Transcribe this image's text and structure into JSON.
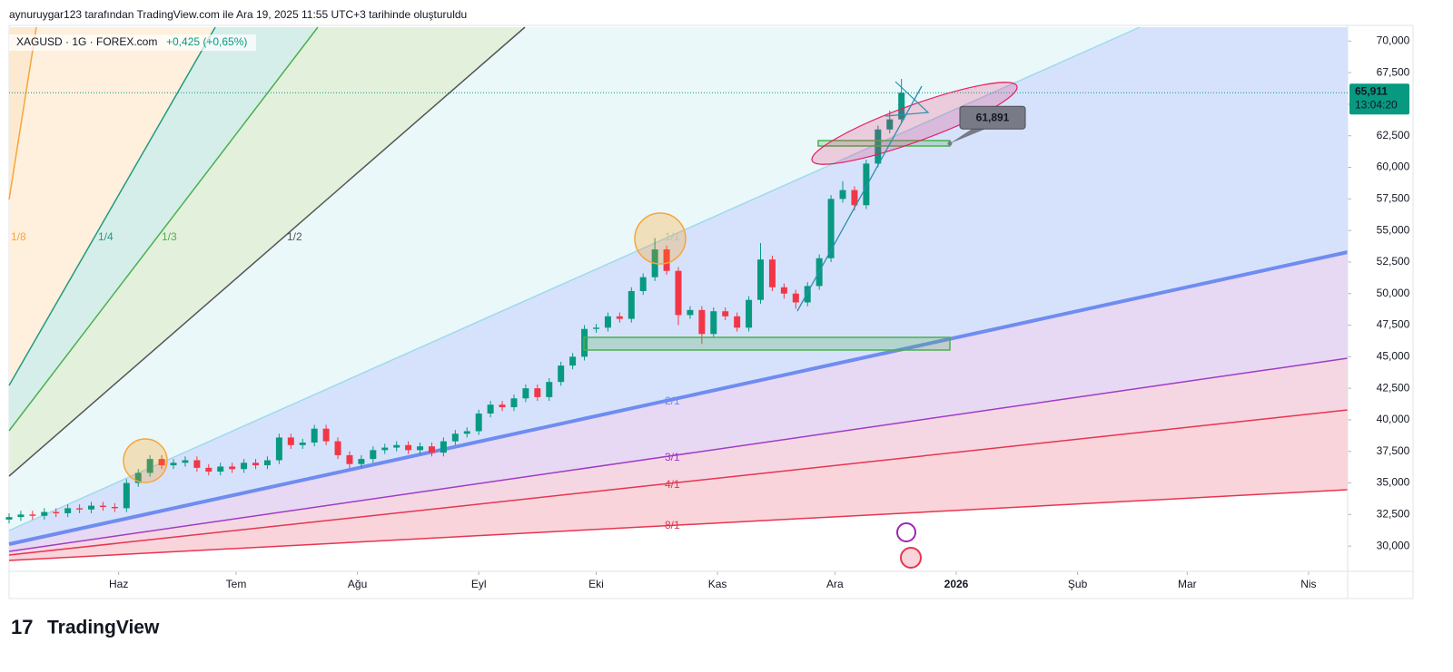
{
  "header": {
    "caption": "aynuruygar123 tarafından TradingView.com ile Ara 19, 2025 11:55 UTC+3 tarihinde oluşturuldu"
  },
  "chart_data": {
    "type": "candlestick",
    "symbol": "XAGUSD · 1G · FOREX.com",
    "change": "+0,425 (+0,65%)",
    "up_color": "#089981",
    "down_color": "#f23645",
    "x": [
      0,
      3,
      6,
      9,
      12,
      15,
      18,
      21,
      24,
      27,
      30,
      33,
      36,
      39,
      42,
      45,
      48,
      51,
      54,
      57,
      60,
      63,
      66,
      69,
      72,
      75,
      78,
      81,
      84,
      87,
      90,
      93,
      96,
      99,
      102,
      105,
      108,
      111,
      114,
      117,
      120,
      123,
      126,
      129,
      132,
      135,
      138,
      141,
      144,
      147,
      150,
      153,
      156,
      159,
      162,
      165,
      168,
      171,
      174,
      177,
      180,
      183,
      186,
      189,
      192,
      195,
      198,
      201,
      204,
      207,
      210,
      213,
      216,
      219,
      222,
      225,
      228
    ],
    "open": [
      32100,
      32300,
      32500,
      32400,
      32700,
      32600,
      33000,
      32900,
      33200,
      33100,
      33000,
      35000,
      35800,
      36900,
      36400,
      36600,
      36800,
      36200,
      35900,
      36300,
      36100,
      36600,
      36400,
      36800,
      38600,
      38000,
      38200,
      39300,
      38300,
      37200,
      36500,
      36900,
      37600,
      37800,
      38000,
      37600,
      37900,
      37400,
      38300,
      38900,
      39100,
      40500,
      41200,
      41000,
      41700,
      42500,
      41800,
      43000,
      44300,
      45000,
      47200,
      47300,
      48200,
      48000,
      50200,
      51300,
      53500,
      51800,
      48300,
      48700,
      46800,
      48600,
      48200,
      47300,
      49500,
      52700,
      50500,
      50000,
      49300,
      50600,
      52800,
      57500,
      58200,
      57000,
      60300,
      63000,
      63800
    ],
    "high": [
      32600,
      32800,
      32800,
      33000,
      33000,
      33300,
      33300,
      33500,
      33500,
      33400,
      35300,
      36100,
      37200,
      37200,
      36900,
      37100,
      37100,
      36500,
      36600,
      36600,
      36900,
      36900,
      37100,
      38900,
      38900,
      38500,
      39600,
      39600,
      38600,
      37500,
      37200,
      37900,
      38100,
      38300,
      38300,
      38200,
      38200,
      38600,
      39200,
      39400,
      40800,
      41500,
      41500,
      42000,
      42800,
      42800,
      43300,
      44600,
      45300,
      47500,
      47600,
      48500,
      48500,
      50500,
      51600,
      54400,
      53800,
      52100,
      49000,
      49000,
      48900,
      48900,
      48500,
      49800,
      54000,
      53000,
      50800,
      50300,
      50900,
      53100,
      57800,
      58900,
      58500,
      60600,
      63300,
      64500,
      67000
    ],
    "low": [
      31800,
      32000,
      32100,
      32100,
      32300,
      32300,
      32600,
      32600,
      32800,
      32700,
      32700,
      34700,
      35500,
      36100,
      36100,
      36300,
      35900,
      35600,
      35600,
      35800,
      35800,
      36100,
      36100,
      36500,
      37700,
      37700,
      37900,
      38000,
      36900,
      36200,
      36200,
      36600,
      37300,
      37500,
      37300,
      37300,
      37100,
      37100,
      38000,
      38600,
      38800,
      40200,
      40700,
      40700,
      41400,
      41500,
      41500,
      42700,
      44000,
      44700,
      46900,
      47000,
      47700,
      47700,
      49900,
      51000,
      51500,
      47500,
      48000,
      46000,
      46500,
      47900,
      47000,
      47000,
      49200,
      50200,
      49600,
      48800,
      49000,
      50300,
      52500,
      57200,
      56600,
      56700,
      60000,
      62700,
      63500
    ],
    "close": [
      32300,
      32500,
      32400,
      32700,
      32600,
      33000,
      32900,
      33200,
      33100,
      33000,
      35000,
      35800,
      36900,
      36400,
      36600,
      36800,
      36200,
      35900,
      36300,
      36100,
      36600,
      36400,
      36800,
      38600,
      38000,
      38200,
      39300,
      38300,
      37200,
      36500,
      36900,
      37600,
      37800,
      38000,
      37600,
      37900,
      37400,
      38300,
      38900,
      39100,
      40500,
      41200,
      41000,
      41700,
      42500,
      41800,
      43000,
      44300,
      45000,
      47200,
      47300,
      48200,
      48000,
      50200,
      51300,
      53500,
      51800,
      48300,
      48700,
      46800,
      48600,
      48200,
      47300,
      49500,
      52700,
      50500,
      50000,
      49300,
      50600,
      52800,
      57500,
      58200,
      57000,
      60300,
      63000,
      63800,
      65911
    ],
    "last_price_label": "65,911",
    "countdown": "13:04:20",
    "annotation": {
      "value": 61891,
      "label": "61,891"
    },
    "fan_labels": [
      "1/8",
      "1/4",
      "1/3",
      "1/2",
      "1/1",
      "2/1",
      "3/1",
      "4/1",
      "8/1"
    ],
    "xlim": [
      0,
      342
    ],
    "xticks": [
      {
        "value": 28,
        "label": "Haz"
      },
      {
        "value": 58,
        "label": "Tem"
      },
      {
        "value": 89,
        "label": "Ağu"
      },
      {
        "value": 120,
        "label": "Eyl"
      },
      {
        "value": 150,
        "label": "Eki"
      },
      {
        "value": 181,
        "label": "Kas"
      },
      {
        "value": 211,
        "label": "Ara"
      },
      {
        "value": 242,
        "label": "2026"
      },
      {
        "value": 273,
        "label": "Şub"
      },
      {
        "value": 301,
        "label": "Mar"
      },
      {
        "value": 332,
        "label": "Nis"
      }
    ],
    "ylim": [
      28000,
      71100
    ],
    "yticks": [
      {
        "value": 30000,
        "label": "30,000"
      },
      {
        "value": 32500,
        "label": "32,500"
      },
      {
        "value": 35000,
        "label": "35,000"
      },
      {
        "value": 37500,
        "label": "37,500"
      },
      {
        "value": 40000,
        "label": "40,000"
      },
      {
        "value": 42500,
        "label": "42,500"
      },
      {
        "value": 45000,
        "label": "45,000"
      },
      {
        "value": 47500,
        "label": "47,500"
      },
      {
        "value": 50000,
        "label": "50,000"
      },
      {
        "value": 52500,
        "label": "52,500"
      },
      {
        "value": 55000,
        "label": "55,000"
      },
      {
        "value": 57500,
        "label": "57,500"
      },
      {
        "value": 60000,
        "label": "60,000"
      },
      {
        "value": 62500,
        "label": "62,500"
      },
      {
        "value": 65000,
        "label": "65,000"
      },
      {
        "value": 67500,
        "label": "67,500"
      },
      {
        "value": 70000,
        "label": "70,000"
      }
    ]
  },
  "footer": {
    "brand": "TradingView"
  }
}
